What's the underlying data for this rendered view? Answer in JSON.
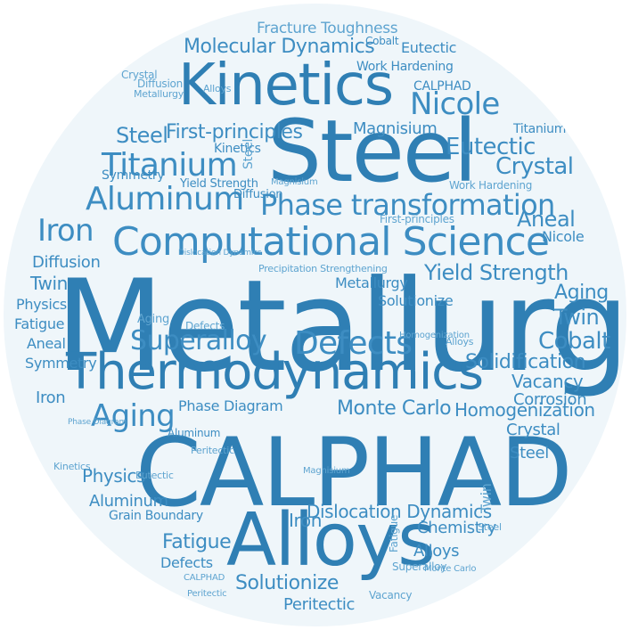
{
  "colors": {
    "background": "#ffffff",
    "circle_fill": "#eff6fa",
    "dark": "#2f7fb4",
    "mid": "#3d8dc2",
    "light": "#5ea4d0"
  },
  "words": {
    "metallurgy": "Metallurgy",
    "calphad": "CALPHAD",
    "steel": "Steel",
    "kinetics": "Kinetics",
    "alloys": "Alloys",
    "computational_science": "Computational Science",
    "thermodynamics": "Thermodynamics",
    "titanium": "Titanium",
    "aluminum": "Aluminum",
    "phase_transformation": "Phase transformation",
    "superalloy": "Superalloy",
    "defects": "Defects",
    "iron": "Iron",
    "aging": "Aging",
    "nicole": "Nicole",
    "yield_strength": "Yield Strength",
    "crystal": "Crystal",
    "eutectic": "Eutectic",
    "molecular_dynamics": "Molecular Dynamics",
    "fracture_toughness": "Fracture Toughness",
    "work_hardening": "Work Hardening",
    "first_principles": "First-principles",
    "cobalt": "Cobalt",
    "twin": "Twin",
    "solidification": "Solidification",
    "vacancy": "Vacancy",
    "corrosion": "Corrosion",
    "homogenization": "Homogenization",
    "monte_carlo": "Monte Carlo",
    "phase_diagram": "Phase Diagram",
    "dislocation_dynamics": "Dislocation Dynamics",
    "fatigue": "Fatigue",
    "physics": "Physics",
    "symmetry": "Symmetry",
    "aneal": "Aneal",
    "diffusion": "Diffusion",
    "solutionize": "Solutionize",
    "peritectic": "Peritectic",
    "chemistry": "Chemistry",
    "grain_boundary": "Grain Boundary",
    "magnisium": "Magnisium",
    "precipitation_strengthening": "Precipitation Strengthening",
    "dislocation_dynamics_small": "Dislocation Dynamics",
    "first_principles_alt": "First-principles"
  }
}
